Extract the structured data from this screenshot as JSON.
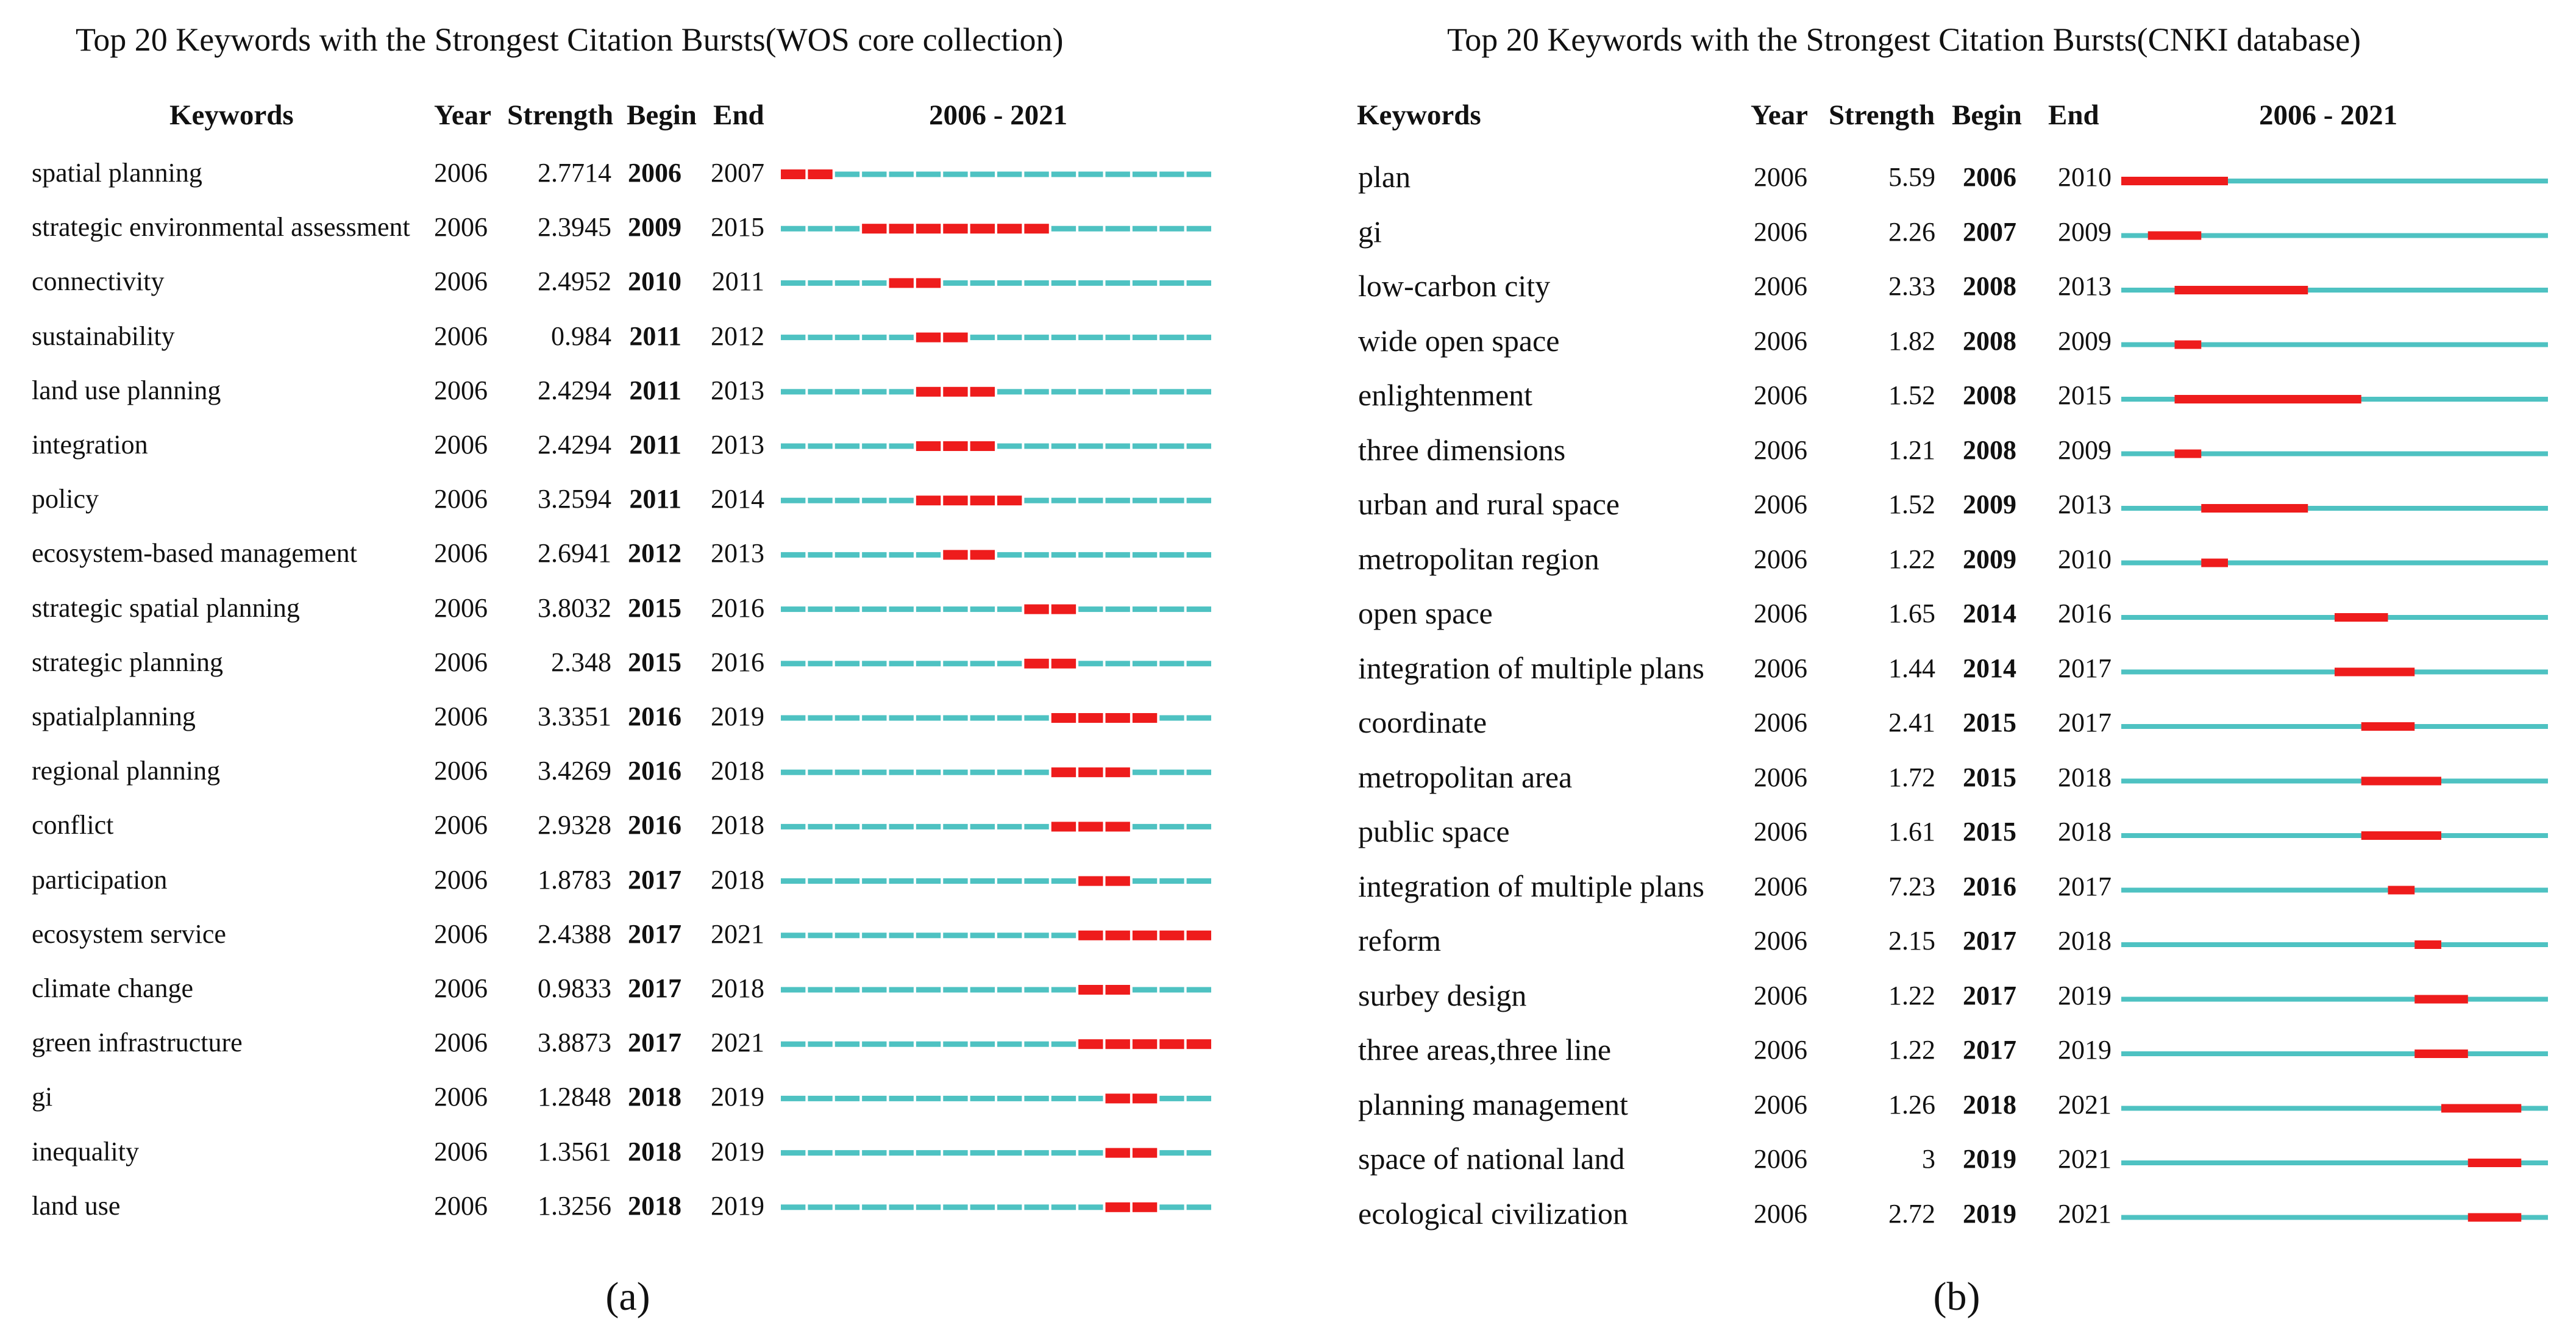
{
  "chart_data": [
    {
      "type": "timeline",
      "title": "Top 20 Keywords with the Strongest Citation Bursts(WOS core collection)",
      "caption_letter": "a",
      "columns": {
        "keywords": "Keywords",
        "year": "Year",
        "strength": "Strength",
        "begin": "Begin",
        "end": "End",
        "range": "2006 - 2021"
      },
      "range_start": 2006,
      "range_end": 2021,
      "bar_style": "segmented",
      "colors": {
        "baseline": "#4ec2c2",
        "burst": "#ee1c1c"
      },
      "rows": [
        {
          "keyword": "spatial planning",
          "year": "2006",
          "strength": "2.7714",
          "begin": "2006",
          "end": "2007"
        },
        {
          "keyword": "strategic environmental assessment",
          "year": "2006",
          "strength": "2.3945",
          "begin": "2009",
          "end": "2015"
        },
        {
          "keyword": "connectivity",
          "year": "2006",
          "strength": "2.4952",
          "begin": "2010",
          "end": "2011"
        },
        {
          "keyword": "sustainability",
          "year": "2006",
          "strength": "0.984",
          "begin": "2011",
          "end": "2012"
        },
        {
          "keyword": "land use planning",
          "year": "2006",
          "strength": "2.4294",
          "begin": "2011",
          "end": "2013"
        },
        {
          "keyword": "integration",
          "year": "2006",
          "strength": "2.4294",
          "begin": "2011",
          "end": "2013"
        },
        {
          "keyword": "policy",
          "year": "2006",
          "strength": "3.2594",
          "begin": "2011",
          "end": "2014"
        },
        {
          "keyword": "ecosystem-based management",
          "year": "2006",
          "strength": "2.6941",
          "begin": "2012",
          "end": "2013"
        },
        {
          "keyword": "strategic spatial planning",
          "year": "2006",
          "strength": "3.8032",
          "begin": "2015",
          "end": "2016"
        },
        {
          "keyword": "strategic planning",
          "year": "2006",
          "strength": "2.348",
          "begin": "2015",
          "end": "2016"
        },
        {
          "keyword": "spatialplanning",
          "year": "2006",
          "strength": "3.3351",
          "begin": "2016",
          "end": "2019"
        },
        {
          "keyword": "regional planning",
          "year": "2006",
          "strength": "3.4269",
          "begin": "2016",
          "end": "2018"
        },
        {
          "keyword": "conflict",
          "year": "2006",
          "strength": "2.9328",
          "begin": "2016",
          "end": "2018"
        },
        {
          "keyword": "participation",
          "year": "2006",
          "strength": "1.8783",
          "begin": "2017",
          "end": "2018"
        },
        {
          "keyword": "ecosystem service",
          "year": "2006",
          "strength": "2.4388",
          "begin": "2017",
          "end": "2021"
        },
        {
          "keyword": "climate change",
          "year": "2006",
          "strength": "0.9833",
          "begin": "2017",
          "end": "2018"
        },
        {
          "keyword": "green infrastructure",
          "year": "2006",
          "strength": "3.8873",
          "begin": "2017",
          "end": "2021"
        },
        {
          "keyword": "gi",
          "year": "2006",
          "strength": "1.2848",
          "begin": "2018",
          "end": "2019"
        },
        {
          "keyword": "inequality",
          "year": "2006",
          "strength": "1.3561",
          "begin": "2018",
          "end": "2019"
        },
        {
          "keyword": "land use",
          "year": "2006",
          "strength": "1.3256",
          "begin": "2018",
          "end": "2019"
        }
      ]
    },
    {
      "type": "timeline",
      "title": "Top 20 Keywords with the Strongest Citation Bursts(CNKI database)",
      "caption_letter": "b",
      "columns": {
        "keywords": "Keywords",
        "year": "Year",
        "strength": "Strength",
        "begin": "Begin",
        "end": "End",
        "range": "2006 - 2021"
      },
      "range_start": 2006,
      "range_end": 2021,
      "bar_style": "continuous",
      "colors": {
        "baseline": "#4ec2c2",
        "burst": "#ee1c1c"
      },
      "rows": [
        {
          "keyword": "plan",
          "year": "2006",
          "strength": "5.59",
          "begin": "2006",
          "end": "2010"
        },
        {
          "keyword": "gi",
          "year": "2006",
          "strength": "2.26",
          "begin": "2007",
          "end": "2009"
        },
        {
          "keyword": "low-carbon city",
          "year": "2006",
          "strength": "2.33",
          "begin": "2008",
          "end": "2013"
        },
        {
          "keyword": "wide open space",
          "year": "2006",
          "strength": "1.82",
          "begin": "2008",
          "end": "2009"
        },
        {
          "keyword": "enlightenment",
          "year": "2006",
          "strength": "1.52",
          "begin": "2008",
          "end": "2015"
        },
        {
          "keyword": "three dimensions",
          "year": "2006",
          "strength": "1.21",
          "begin": "2008",
          "end": "2009"
        },
        {
          "keyword": "urban and rural space",
          "year": "2006",
          "strength": "1.52",
          "begin": "2009",
          "end": "2013"
        },
        {
          "keyword": "metropolitan region",
          "year": "2006",
          "strength": "1.22",
          "begin": "2009",
          "end": "2010"
        },
        {
          "keyword": "open space",
          "year": "2006",
          "strength": "1.65",
          "begin": "2014",
          "end": "2016"
        },
        {
          "keyword": "integration of multiple plans",
          "year": "2006",
          "strength": "1.44",
          "begin": "2014",
          "end": "2017"
        },
        {
          "keyword": "coordinate",
          "year": "2006",
          "strength": "2.41",
          "begin": "2015",
          "end": "2017"
        },
        {
          "keyword": "metropolitan area",
          "year": "2006",
          "strength": "1.72",
          "begin": "2015",
          "end": "2018"
        },
        {
          "keyword": "public space",
          "year": "2006",
          "strength": "1.61",
          "begin": "2015",
          "end": "2018"
        },
        {
          "keyword": "integration of multiple plans",
          "year": "2006",
          "strength": "7.23",
          "begin": "2016",
          "end": "2017"
        },
        {
          "keyword": "reform",
          "year": "2006",
          "strength": "2.15",
          "begin": "2017",
          "end": "2018"
        },
        {
          "keyword": "surbey design",
          "year": "2006",
          "strength": "1.22",
          "begin": "2017",
          "end": "2019"
        },
        {
          "keyword": "three areas,three line",
          "year": "2006",
          "strength": "1.22",
          "begin": "2017",
          "end": "2019"
        },
        {
          "keyword": "planning management",
          "year": "2006",
          "strength": "1.26",
          "begin": "2018",
          "end": "2021"
        },
        {
          "keyword": "space of national land",
          "year": "2006",
          "strength": "3",
          "begin": "2019",
          "end": "2021"
        },
        {
          "keyword": "ecological civilization",
          "year": "2006",
          "strength": "2.72",
          "begin": "2019",
          "end": "2021"
        }
      ]
    }
  ]
}
